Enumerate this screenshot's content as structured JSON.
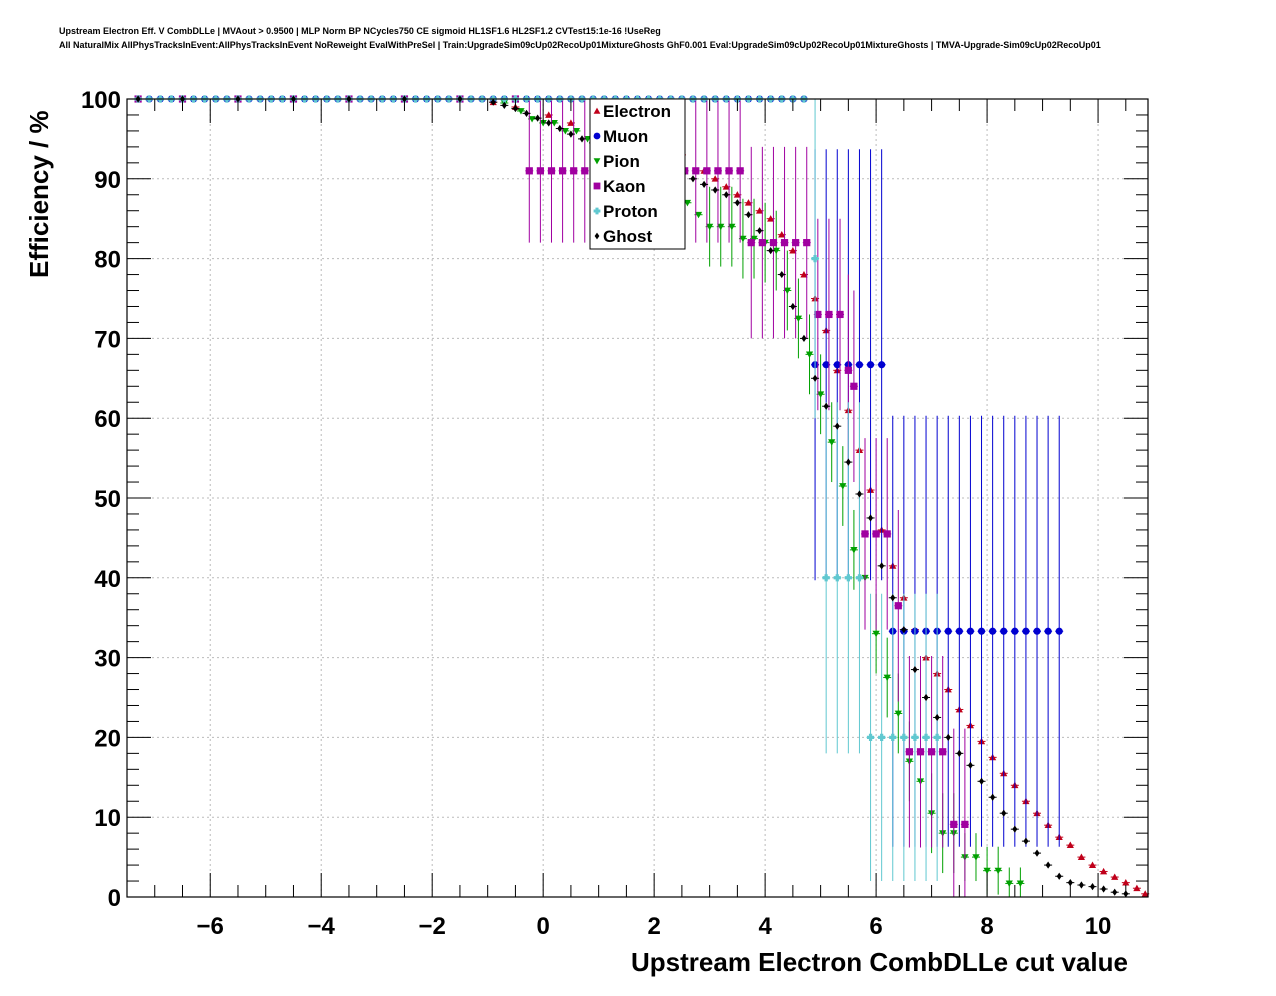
{
  "header": {
    "line1": "Upstream Electron Eff. V CombDLLe | MVAout > 0.9500 | MLP Norm BP NCycles750 CE sigmoid HL1SF1.6 HL2SF1.2 CVTest15:1e-16 !UseReg",
    "line2": "All NaturalMix AllPhysTracksInEvent:AllPhysTracksInEvent NoReweight EvalWithPreSel | Train:UpgradeSim09cUp02RecoUp01MixtureGhosts GhF0.001 Eval:UpgradeSim09cUp02RecoUp01MixtureGhosts | TMVA-Upgrade-Sim09cUp02RecoUp01"
  },
  "chart_data": {
    "type": "scatter",
    "xlabel": "Upstream Electron CombDLLe cut value",
    "ylabel": "Efficiency / %",
    "xlim": [
      -7.5,
      10.9
    ],
    "ylim": [
      0,
      100
    ],
    "xticks": [
      -6,
      -4,
      -2,
      0,
      2,
      4,
      6,
      8,
      10
    ],
    "xtick_labels": [
      "−6",
      "−4",
      "−2",
      "0",
      "2",
      "4",
      "6",
      "8",
      "10"
    ],
    "yticks": [
      0,
      10,
      20,
      30,
      40,
      50,
      60,
      70,
      80,
      90,
      100
    ],
    "ytick_labels": [
      "0",
      "10",
      "20",
      "30",
      "40",
      "50",
      "60",
      "70",
      "80",
      "90",
      "100"
    ],
    "grid": true,
    "legend_position": "top-center",
    "colors": {
      "Electron": "#c0001a",
      "Muon": "#0000d0",
      "Pion": "#00a000",
      "Kaon": "#a000a0",
      "Proton": "#60c8d0",
      "Ghost": "#000000"
    },
    "series": [
      {
        "name": "Electron",
        "marker": "triangle-up",
        "x": [
          -7.3,
          -6.5,
          -5.5,
          -4.5,
          -3.5,
          -2.5,
          -1.5,
          -0.9,
          -0.5,
          0.1,
          0.5,
          1.0,
          1.5,
          2.0,
          2.5,
          2.9,
          3.1,
          3.3,
          3.5,
          3.7,
          3.9,
          4.1,
          4.3,
          4.5,
          4.7,
          4.9,
          5.1,
          5.3,
          5.5,
          5.7,
          5.9,
          6.1,
          6.3,
          6.5,
          6.7,
          6.9,
          7.1,
          7.3,
          7.5,
          7.7,
          7.9,
          8.1,
          8.3,
          8.5,
          8.7,
          8.9,
          9.1,
          9.3,
          9.5,
          9.7,
          9.9,
          10.1,
          10.3,
          10.5,
          10.7,
          10.85
        ],
        "y": [
          100,
          100,
          100,
          100,
          100,
          100,
          100,
          99.6,
          99,
          98,
          97,
          96,
          95,
          94,
          93,
          91,
          90,
          89,
          88,
          87,
          86,
          85,
          83,
          81,
          78,
          75,
          71,
          66,
          61,
          56,
          51,
          46,
          41.5,
          37.5,
          33.5,
          30,
          28,
          26,
          23.5,
          21.5,
          19.5,
          17.5,
          15.5,
          14,
          12,
          10.5,
          9,
          7.5,
          6.5,
          5,
          4,
          3.2,
          2.5,
          1.8,
          1.1,
          0.4
        ],
        "err": [
          0,
          0,
          0,
          0,
          0,
          0,
          0,
          0,
          0,
          0,
          0,
          0,
          0,
          0,
          0,
          0,
          0,
          0,
          0,
          0,
          0,
          0,
          0,
          0,
          0,
          0,
          0,
          0,
          0,
          0,
          0,
          0,
          0,
          0,
          0,
          0,
          0,
          0,
          0,
          0,
          0,
          0,
          0,
          0,
          0,
          0,
          0,
          0,
          0,
          0,
          0,
          0,
          0,
          0,
          0,
          0
        ]
      },
      {
        "name": "Muon",
        "marker": "circle",
        "x": [
          -7.3,
          -7.1,
          -6.9,
          -6.7,
          -6.5,
          -6.3,
          -6.1,
          -5.9,
          -5.7,
          -5.5,
          -5.3,
          -5.1,
          -4.9,
          -4.7,
          -4.5,
          -4.3,
          -4.1,
          -3.9,
          -3.7,
          -3.5,
          -3.3,
          -3.1,
          -2.9,
          -2.7,
          -2.5,
          -2.3,
          -2.1,
          -1.9,
          -1.7,
          -1.5,
          -1.3,
          -1.1,
          -0.9,
          -0.7,
          -0.5,
          -0.3,
          -0.1,
          0.1,
          0.3,
          0.5,
          0.7,
          0.9,
          1.1,
          1.3,
          1.5,
          1.7,
          1.9,
          2.1,
          2.3,
          2.5,
          2.7,
          2.9,
          3.1,
          3.3,
          3.5,
          3.7,
          3.9,
          4.1,
          4.3,
          4.5,
          4.7,
          4.9,
          5.1,
          5.3,
          5.5,
          5.7,
          5.9,
          6.1,
          6.3,
          6.5,
          6.7,
          6.9,
          7.1,
          7.3,
          7.5,
          7.7,
          7.9,
          8.1,
          8.3,
          8.5,
          8.7,
          8.9,
          9.1,
          9.3
        ],
        "y": [
          100,
          100,
          100,
          100,
          100,
          100,
          100,
          100,
          100,
          100,
          100,
          100,
          100,
          100,
          100,
          100,
          100,
          100,
          100,
          100,
          100,
          100,
          100,
          100,
          100,
          100,
          100,
          100,
          100,
          100,
          100,
          100,
          100,
          100,
          100,
          100,
          100,
          100,
          100,
          100,
          100,
          100,
          100,
          100,
          100,
          100,
          100,
          100,
          100,
          100,
          100,
          100,
          100,
          100,
          100,
          100,
          100,
          100,
          100,
          100,
          100,
          66.7,
          66.7,
          66.7,
          66.7,
          66.7,
          66.7,
          66.7,
          33.3,
          33.3,
          33.3,
          33.3,
          33.3,
          33.3,
          33.3,
          33.3,
          33.3,
          33.3,
          33.3,
          33.3,
          33.3,
          33.3,
          33.3,
          33.3
        ],
        "err": [
          0,
          0,
          0,
          0,
          0,
          0,
          0,
          0,
          0,
          0,
          0,
          0,
          0,
          0,
          0,
          0,
          0,
          0,
          0,
          0,
          0,
          0,
          0,
          0,
          0,
          0,
          0,
          0,
          0,
          0,
          0,
          0,
          0,
          0,
          0,
          0,
          0,
          0,
          0,
          0,
          0,
          0,
          0,
          0,
          0,
          0,
          0,
          0,
          0,
          0,
          0,
          0,
          0,
          0,
          0,
          0,
          0,
          0,
          0,
          0,
          0,
          27,
          27,
          27,
          27,
          27,
          27,
          27,
          27,
          27,
          27,
          27,
          27,
          27,
          27,
          27,
          27,
          27,
          27,
          27,
          27,
          27,
          27,
          27
        ]
      },
      {
        "name": "Pion",
        "marker": "triangle-down",
        "x": [
          -7.3,
          -6.5,
          -5.5,
          -4.5,
          -3.5,
          -2.5,
          -1.5,
          -0.7,
          -0.4,
          -0.2,
          0.0,
          0.2,
          0.4,
          0.6,
          0.8,
          1.0,
          1.2,
          1.4,
          1.6,
          1.8,
          2.0,
          2.2,
          2.4,
          2.6,
          2.8,
          3.0,
          3.2,
          3.4,
          3.6,
          3.8,
          4.0,
          4.2,
          4.4,
          4.6,
          4.8,
          5.0,
          5.2,
          5.4,
          5.6,
          5.8,
          6.0,
          6.2,
          6.4,
          6.6,
          6.8,
          7.0,
          7.2,
          7.4,
          7.6,
          7.8,
          8.0,
          8.2,
          8.4,
          8.6
        ],
        "y": [
          100,
          100,
          100,
          100,
          100,
          100,
          100,
          99.5,
          98.5,
          97.5,
          97,
          97,
          96,
          96,
          95,
          94,
          94,
          93,
          92,
          90.5,
          89,
          88.5,
          88,
          87,
          85.5,
          84,
          84,
          84,
          82.5,
          82.5,
          82,
          81,
          76,
          72.5,
          68,
          63,
          57,
          51.5,
          43.5,
          40,
          33,
          27.5,
          23,
          17,
          14.5,
          10.5,
          8,
          8,
          5,
          5,
          3.3,
          3.3,
          1.7,
          1.7
        ],
        "err": [
          0,
          0,
          0,
          0,
          0,
          0,
          0,
          0,
          0,
          0,
          0,
          0,
          0,
          0,
          0,
          0,
          0,
          0,
          0,
          0,
          0,
          0,
          0,
          0,
          0,
          5,
          5,
          5,
          5,
          5,
          5,
          5,
          5,
          5,
          5,
          5,
          5,
          5,
          5,
          5,
          5,
          5,
          5,
          5,
          5,
          5,
          5,
          5,
          3,
          3,
          3,
          3,
          2,
          2
        ]
      },
      {
        "name": "Kaon",
        "marker": "square",
        "x": [
          -7.3,
          -6.5,
          -5.5,
          -4.5,
          -3.5,
          -2.5,
          -1.5,
          -0.5,
          -0.25,
          -0.05,
          0.15,
          0.35,
          0.55,
          0.75,
          0.95,
          1.15,
          1.35,
          1.55,
          1.75,
          1.95,
          2.15,
          2.35,
          2.55,
          2.75,
          2.95,
          3.15,
          3.35,
          3.55,
          3.75,
          3.95,
          4.15,
          4.35,
          4.55,
          4.75,
          4.95,
          5.15,
          5.35,
          5.5,
          5.6,
          5.8,
          6.0,
          6.2,
          6.4,
          6.6,
          6.8,
          7.0,
          7.2,
          7.4,
          7.6
        ],
        "y": [
          100,
          100,
          100,
          100,
          100,
          100,
          100,
          100,
          91,
          91,
          91,
          91,
          91,
          91,
          91,
          91,
          91,
          91,
          91,
          91,
          91,
          91,
          91,
          91,
          91,
          91,
          91,
          91,
          82,
          82,
          82,
          82,
          82,
          82,
          73,
          73,
          73,
          66,
          64,
          45.5,
          45.5,
          45.5,
          36.5,
          18.2,
          18.2,
          18.2,
          18.2,
          9.1,
          9.1
        ],
        "err": [
          0,
          0,
          0,
          0,
          0,
          0,
          0,
          0,
          9,
          9,
          9,
          9,
          9,
          9,
          9,
          9,
          9,
          9,
          9,
          9,
          9,
          9,
          9,
          9,
          9,
          9,
          9,
          9,
          12,
          12,
          12,
          12,
          12,
          12,
          12,
          12,
          12,
          12,
          12,
          12,
          12,
          12,
          12,
          12,
          12,
          12,
          12,
          12,
          12
        ]
      },
      {
        "name": "Proton",
        "marker": "cross",
        "x": [
          -7.3,
          -7.1,
          -6.9,
          -6.7,
          -6.5,
          -6.3,
          -6.1,
          -5.9,
          -5.7,
          -5.5,
          -5.3,
          -5.1,
          -4.9,
          -4.7,
          -4.5,
          -4.3,
          -4.1,
          -3.9,
          -3.7,
          -3.5,
          -3.3,
          -3.1,
          -2.9,
          -2.7,
          -2.5,
          -2.3,
          -2.1,
          -1.9,
          -1.7,
          -1.5,
          -1.3,
          -1.1,
          -0.9,
          -0.7,
          -0.5,
          -0.3,
          -0.1,
          0.1,
          0.3,
          0.5,
          0.7,
          0.9,
          1.1,
          1.3,
          1.5,
          1.7,
          1.9,
          2.1,
          2.3,
          2.5,
          2.7,
          2.9,
          3.1,
          3.3,
          3.5,
          3.7,
          3.9,
          4.1,
          4.3,
          4.5,
          4.7,
          4.9,
          5.1,
          5.3,
          5.5,
          5.7,
          5.9,
          6.1,
          6.3,
          6.5,
          6.7,
          6.9,
          7.1
        ],
        "y": [
          100,
          100,
          100,
          100,
          100,
          100,
          100,
          100,
          100,
          100,
          100,
          100,
          100,
          100,
          100,
          100,
          100,
          100,
          100,
          100,
          100,
          100,
          100,
          100,
          100,
          100,
          100,
          100,
          100,
          100,
          100,
          100,
          100,
          100,
          100,
          100,
          100,
          100,
          100,
          100,
          100,
          100,
          100,
          100,
          100,
          100,
          100,
          100,
          100,
          100,
          100,
          100,
          100,
          100,
          100,
          100,
          100,
          100,
          100,
          100,
          100,
          80,
          40,
          40,
          40,
          40,
          20,
          20,
          20,
          20,
          20,
          20,
          20
        ],
        "err": [
          0,
          0,
          0,
          0,
          0,
          0,
          0,
          0,
          0,
          0,
          0,
          0,
          0,
          0,
          0,
          0,
          0,
          0,
          0,
          0,
          0,
          0,
          0,
          0,
          0,
          0,
          0,
          0,
          0,
          0,
          0,
          0,
          0,
          0,
          0,
          0,
          0,
          0,
          0,
          0,
          0,
          0,
          0,
          0,
          0,
          0,
          0,
          0,
          0,
          0,
          0,
          0,
          0,
          0,
          0,
          0,
          0,
          0,
          0,
          0,
          0,
          20,
          22,
          22,
          22,
          22,
          18,
          18,
          18,
          18,
          18,
          18,
          18
        ]
      },
      {
        "name": "Ghost",
        "marker": "diamond",
        "x": [
          -7.3,
          -6.5,
          -5.5,
          -4.5,
          -3.5,
          -2.5,
          -1.5,
          -0.9,
          -0.7,
          -0.5,
          -0.3,
          -0.1,
          0.1,
          0.3,
          0.5,
          0.7,
          0.9,
          1.1,
          1.3,
          1.5,
          1.7,
          1.9,
          2.1,
          2.3,
          2.5,
          2.7,
          2.9,
          3.1,
          3.3,
          3.5,
          3.7,
          3.9,
          4.1,
          4.3,
          4.5,
          4.7,
          4.9,
          5.1,
          5.3,
          5.5,
          5.7,
          5.9,
          6.1,
          6.3,
          6.5,
          6.7,
          6.9,
          7.1,
          7.3,
          7.5,
          7.7,
          7.9,
          8.1,
          8.3,
          8.5,
          8.7,
          8.9,
          9.1,
          9.3,
          9.5,
          9.7,
          9.9,
          10.1,
          10.3,
          10.5
        ],
        "y": [
          100,
          100,
          100,
          100,
          100,
          100,
          100,
          99.6,
          99.2,
          98.8,
          98.2,
          97.6,
          97,
          96.3,
          95.6,
          95,
          94.5,
          94,
          93.6,
          93.2,
          92.8,
          92.4,
          91.8,
          91.2,
          90.6,
          90,
          89.3,
          88.6,
          88,
          87,
          85.5,
          83.5,
          81,
          78,
          74,
          70,
          65,
          61.5,
          59,
          54.5,
          50.5,
          47.5,
          41.5,
          37.5,
          33.5,
          28.5,
          25,
          22.5,
          20,
          18,
          16.5,
          14.5,
          12.5,
          10.5,
          8.5,
          7,
          5.5,
          4,
          2.6,
          1.8,
          1.5,
          1.3,
          1.0,
          0.6,
          0.4
        ],
        "err": [
          0,
          0,
          0,
          0,
          0,
          0,
          0,
          0,
          0,
          0,
          0,
          0,
          0,
          0,
          0,
          0,
          0,
          0,
          0,
          0,
          0,
          0,
          0,
          0,
          0,
          0,
          0,
          0,
          0,
          0,
          0,
          0,
          0,
          0,
          0,
          0,
          0,
          0,
          0,
          0,
          0,
          0,
          0,
          0,
          0,
          0,
          0,
          0,
          0,
          0,
          0,
          0,
          0,
          0,
          0,
          0,
          0,
          0,
          0,
          0,
          0,
          0,
          0,
          0,
          0
        ]
      }
    ]
  }
}
